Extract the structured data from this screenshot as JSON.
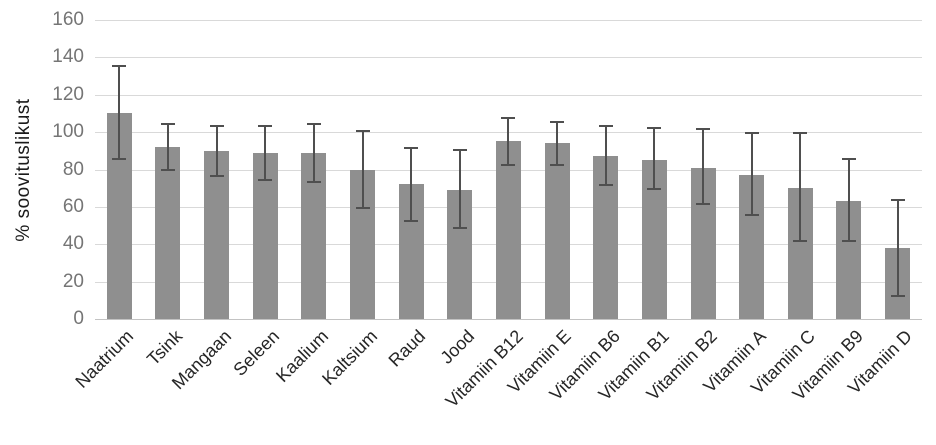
{
  "chart_data": {
    "type": "bar",
    "ylabel": "% soovituslikust",
    "xlabel": "",
    "ylim": [
      0,
      160
    ],
    "ytick_step": 20,
    "yticks": [
      0,
      20,
      40,
      60,
      80,
      100,
      120,
      140,
      160
    ],
    "grid": true,
    "legend": false,
    "categories": [
      "Naatrium",
      "Tsink",
      "Mangaan",
      "Seleen",
      "Kaalium",
      "Kaltsium",
      "Raud",
      "Jood",
      "Vitamiin B12",
      "Vitamiin E",
      "Vitamiin B6",
      "Vitamiin B1",
      "Vitamiin B2",
      "Vitamiin A",
      "Vitamiin C",
      "Vitamiin B9",
      "Vitamiin D"
    ],
    "values": [
      110,
      92,
      90,
      89,
      89,
      80,
      72,
      69,
      95,
      94,
      87,
      85,
      81,
      77,
      70,
      63,
      38
    ],
    "error_low": [
      85,
      79,
      76,
      74,
      73,
      59,
      52,
      48,
      82,
      82,
      71,
      69,
      61,
      55,
      41,
      41,
      12
    ],
    "error_high": [
      136,
      105,
      104,
      104,
      105,
      101,
      92,
      91,
      108,
      106,
      104,
      103,
      102,
      100,
      100,
      86,
      64
    ],
    "colors": {
      "bar": "#8f8f8f",
      "error": "#4f4f4f",
      "gridline": "#d9d9d9",
      "axis_line": "#c3c3c3",
      "tick_label": "#757575",
      "category_label": "#262626",
      "axis_title": "#1a1a1a",
      "background": "#ffffff"
    }
  }
}
